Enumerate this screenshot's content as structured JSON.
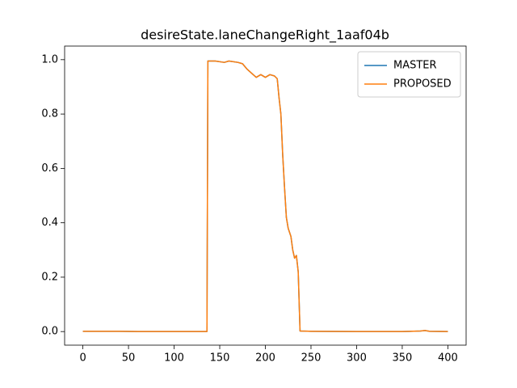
{
  "chart_data": {
    "type": "line",
    "title": "desireState.laneChangeRight_1aaf04b",
    "x": [
      0,
      20,
      40,
      60,
      80,
      100,
      120,
      136,
      137,
      145,
      155,
      160,
      170,
      175,
      180,
      185,
      190,
      195,
      200,
      205,
      210,
      213,
      215,
      217,
      219,
      221,
      223,
      225,
      228,
      230,
      232,
      234,
      236,
      238,
      250,
      300,
      350,
      370,
      375,
      380,
      400
    ],
    "series": [
      {
        "name": "MASTER",
        "color": "#1f77b4",
        "values": [
          0.001,
          0.001,
          0.001,
          0,
          0,
          0,
          0,
          0,
          0.995,
          0.995,
          0.99,
          0.995,
          0.99,
          0.985,
          0.965,
          0.95,
          0.935,
          0.945,
          0.935,
          0.945,
          0.94,
          0.93,
          0.86,
          0.8,
          0.65,
          0.53,
          0.42,
          0.38,
          0.35,
          0.3,
          0.27,
          0.28,
          0.22,
          0.002,
          0.001,
          0,
          0,
          0.002,
          0.004,
          0.001,
          0
        ]
      },
      {
        "name": "PROPOSED",
        "color": "#ff7f0e",
        "values": [
          0.001,
          0.001,
          0.001,
          0,
          0,
          0,
          0,
          0,
          0.995,
          0.995,
          0.99,
          0.995,
          0.99,
          0.985,
          0.965,
          0.95,
          0.935,
          0.945,
          0.935,
          0.945,
          0.94,
          0.93,
          0.86,
          0.8,
          0.65,
          0.53,
          0.42,
          0.38,
          0.35,
          0.3,
          0.27,
          0.28,
          0.22,
          0.002,
          0.001,
          0,
          0,
          0.002,
          0.004,
          0.001,
          0
        ]
      }
    ],
    "xlim": [
      -20,
      420
    ],
    "ylim": [
      -0.05,
      1.05
    ],
    "xticks": [
      0,
      50,
      100,
      150,
      200,
      250,
      300,
      350,
      400
    ],
    "yticks": [
      {
        "value": 0,
        "label": "0.0"
      },
      0.2,
      0.4,
      0.6,
      0.8,
      {
        "value": 1,
        "label": "1.0"
      }
    ],
    "legend": "upper right",
    "grid": false
  }
}
